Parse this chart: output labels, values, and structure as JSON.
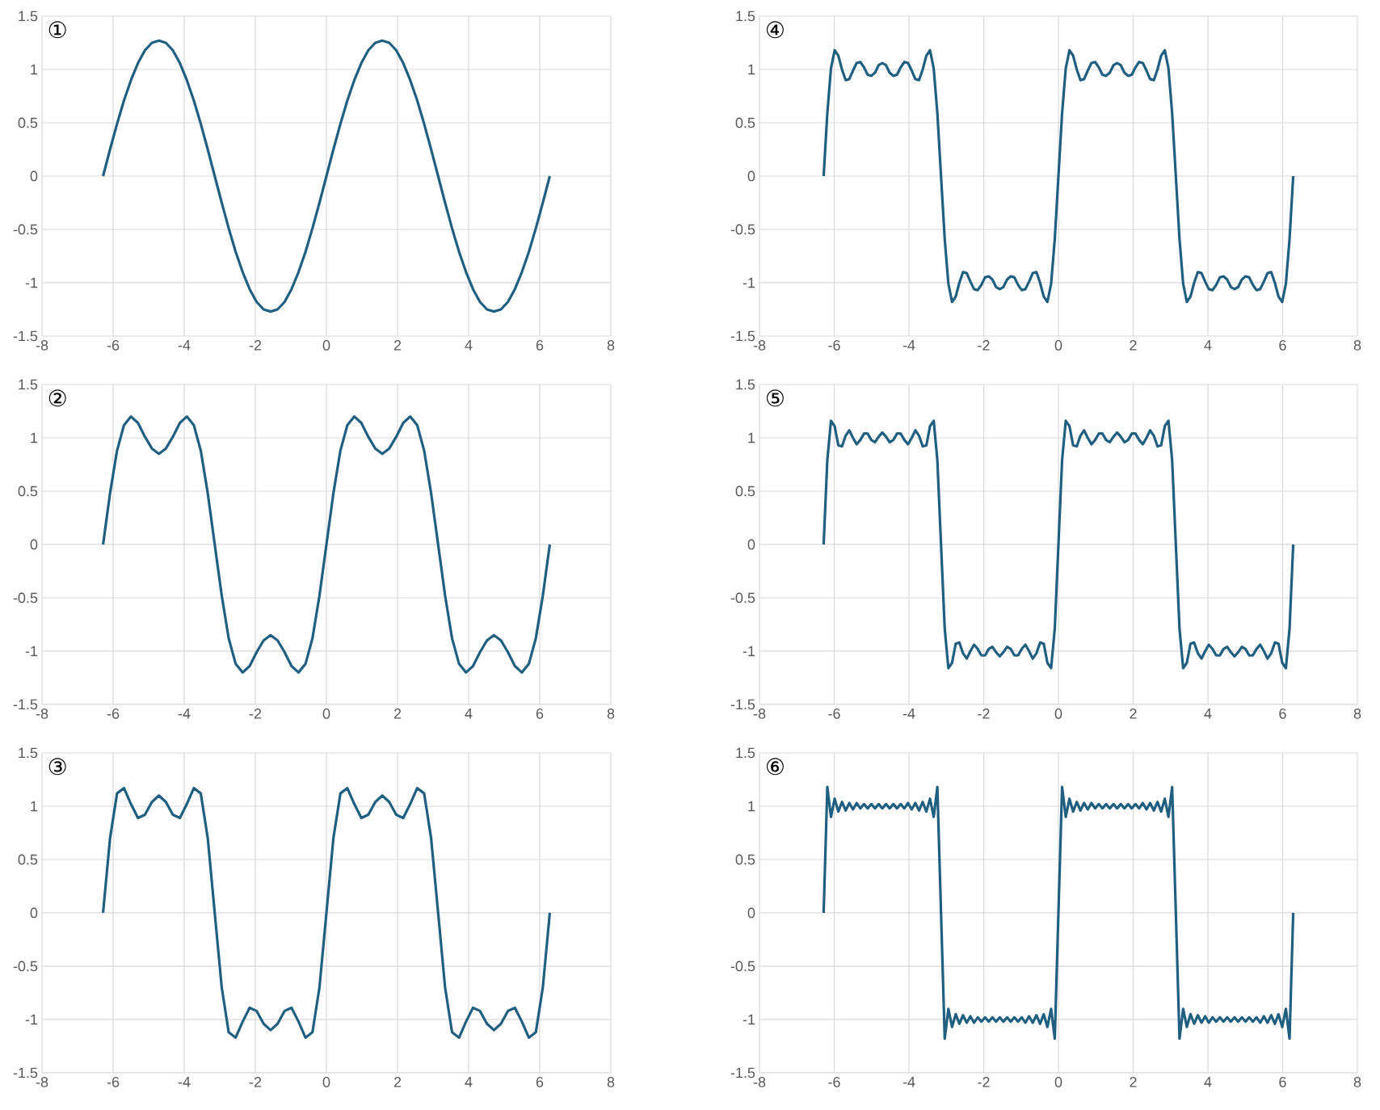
{
  "chart_data": [
    {
      "type": "line",
      "title": "①",
      "color": "#215f80",
      "grid": true,
      "xlim": [
        -8,
        8
      ],
      "ylim": [
        -1.5,
        1.5
      ],
      "xticks": [
        -8,
        -6,
        -4,
        -2,
        0,
        2,
        4,
        6,
        8
      ],
      "yticks": [
        -1.5,
        -1,
        -0.5,
        0,
        0.5,
        1,
        1.5
      ],
      "x": [
        -6.283,
        -6.087,
        -5.89,
        -5.694,
        -5.498,
        -5.301,
        -5.105,
        -4.909,
        -4.712,
        -4.516,
        -4.32,
        -4.123,
        -3.927,
        -3.731,
        -3.534,
        -3.338,
        -3.142,
        -2.945,
        -2.749,
        -2.553,
        -2.356,
        -2.16,
        -1.963,
        -1.767,
        -1.571,
        -1.374,
        -1.178,
        -0.982,
        -0.785,
        -0.589,
        -0.393,
        -0.196,
        0,
        0.196,
        0.393,
        0.589,
        0.785,
        0.982,
        1.178,
        1.374,
        1.571,
        1.767,
        1.963,
        2.16,
        2.356,
        2.553,
        2.749,
        2.945,
        3.142,
        3.338,
        3.534,
        3.731,
        3.927,
        4.123,
        4.32,
        4.516,
        4.712,
        4.909,
        5.105,
        5.301,
        5.498,
        5.694,
        5.89,
        6.087,
        6.283
      ],
      "values": [
        0,
        0.25,
        0.49,
        0.71,
        0.9,
        1.06,
        1.18,
        1.25,
        1.27,
        1.25,
        1.18,
        1.06,
        0.9,
        0.71,
        0.49,
        0.25,
        0,
        -0.25,
        -0.49,
        -0.71,
        -0.9,
        -1.06,
        -1.18,
        -1.25,
        -1.27,
        -1.25,
        -1.18,
        -1.06,
        -0.9,
        -0.71,
        -0.49,
        -0.25,
        0,
        0.25,
        0.49,
        0.71,
        0.9,
        1.06,
        1.18,
        1.25,
        1.27,
        1.25,
        1.18,
        1.06,
        0.9,
        0.71,
        0.49,
        0.25,
        0,
        -0.25,
        -0.49,
        -0.71,
        -0.9,
        -1.06,
        -1.18,
        -1.25,
        -1.27,
        -1.25,
        -1.18,
        -1.06,
        -0.9,
        -0.71,
        -0.49,
        -0.25,
        0
      ]
    },
    {
      "type": "line",
      "title": "②",
      "color": "#215f80",
      "grid": true,
      "xlim": [
        -8,
        8
      ],
      "ylim": [
        -1.5,
        1.5
      ],
      "xticks": [
        -8,
        -6,
        -4,
        -2,
        0,
        2,
        4,
        6,
        8
      ],
      "yticks": [
        -1.5,
        -1,
        -0.5,
        0,
        0.5,
        1,
        1.5
      ],
      "x": [
        -6.283,
        -6.087,
        -5.89,
        -5.694,
        -5.498,
        -5.301,
        -5.105,
        -4.909,
        -4.712,
        -4.516,
        -4.32,
        -4.123,
        -3.927,
        -3.731,
        -3.534,
        -3.338,
        -3.142,
        -2.945,
        -2.749,
        -2.553,
        -2.356,
        -2.16,
        -1.963,
        -1.767,
        -1.571,
        -1.374,
        -1.178,
        -0.982,
        -0.785,
        -0.589,
        -0.393,
        -0.196,
        0,
        0.196,
        0.393,
        0.589,
        0.785,
        0.982,
        1.178,
        1.374,
        1.571,
        1.767,
        1.963,
        2.16,
        2.356,
        2.553,
        2.749,
        2.945,
        3.142,
        3.338,
        3.534,
        3.731,
        3.927,
        4.123,
        4.32,
        4.516,
        4.712,
        4.909,
        5.105,
        5.301,
        5.498,
        5.694,
        5.89,
        6.087,
        6.283
      ],
      "values": [
        0,
        0.48,
        0.88,
        1.12,
        1.2,
        1.14,
        1.01,
        0.9,
        0.85,
        0.9,
        1.01,
        1.14,
        1.2,
        1.12,
        0.88,
        0.48,
        0,
        -0.48,
        -0.88,
        -1.12,
        -1.2,
        -1.14,
        -1.01,
        -0.9,
        -0.85,
        -0.9,
        -1.01,
        -1.14,
        -1.2,
        -1.12,
        -0.88,
        -0.48,
        0,
        0.48,
        0.88,
        1.12,
        1.2,
        1.14,
        1.01,
        0.9,
        0.85,
        0.9,
        1.01,
        1.14,
        1.2,
        1.12,
        0.88,
        0.48,
        0,
        -0.48,
        -0.88,
        -1.12,
        -1.2,
        -1.14,
        -1.01,
        -0.9,
        -0.85,
        -0.9,
        -1.01,
        -1.14,
        -1.2,
        -1.12,
        -0.88,
        -0.48,
        0
      ]
    },
    {
      "type": "line",
      "title": "③",
      "color": "#215f80",
      "grid": true,
      "xlim": [
        -8,
        8
      ],
      "ylim": [
        -1.5,
        1.5
      ],
      "xticks": [
        -8,
        -6,
        -4,
        -2,
        0,
        2,
        4,
        6,
        8
      ],
      "yticks": [
        -1.5,
        -1,
        -0.5,
        0,
        0.5,
        1,
        1.5
      ],
      "x": [
        -6.283,
        -6.087,
        -5.89,
        -5.694,
        -5.498,
        -5.301,
        -5.105,
        -4.909,
        -4.712,
        -4.516,
        -4.32,
        -4.123,
        -3.927,
        -3.731,
        -3.534,
        -3.338,
        -3.142,
        -2.945,
        -2.749,
        -2.553,
        -2.356,
        -2.16,
        -1.963,
        -1.767,
        -1.571,
        -1.374,
        -1.178,
        -0.982,
        -0.785,
        -0.589,
        -0.393,
        -0.196,
        0,
        0.196,
        0.393,
        0.589,
        0.785,
        0.982,
        1.178,
        1.374,
        1.571,
        1.767,
        1.963,
        2.16,
        2.356,
        2.553,
        2.749,
        2.945,
        3.142,
        3.338,
        3.534,
        3.731,
        3.927,
        4.123,
        4.32,
        4.516,
        4.712,
        4.909,
        5.105,
        5.301,
        5.498,
        5.694,
        5.89,
        6.087,
        6.283
      ],
      "values": [
        0,
        0.7,
        1.12,
        1.17,
        1.02,
        0.89,
        0.92,
        1.04,
        1.1,
        1.04,
        0.92,
        0.89,
        1.02,
        1.17,
        1.12,
        0.7,
        0,
        -0.7,
        -1.12,
        -1.17,
        -1.02,
        -0.89,
        -0.92,
        -1.04,
        -1.1,
        -1.04,
        -0.92,
        -0.89,
        -1.02,
        -1.17,
        -1.12,
        -0.7,
        0,
        0.7,
        1.12,
        1.17,
        1.02,
        0.89,
        0.92,
        1.04,
        1.1,
        1.04,
        0.92,
        0.89,
        1.02,
        1.17,
        1.12,
        0.7,
        0,
        -0.7,
        -1.12,
        -1.17,
        -1.02,
        -0.89,
        -0.92,
        -1.04,
        -1.1,
        -1.04,
        -0.92,
        -0.89,
        -1.02,
        -1.17,
        -1.12,
        -0.7,
        0
      ]
    },
    {
      "type": "line",
      "title": "④",
      "color": "#215f80",
      "grid": true,
      "xlim": [
        -8,
        8
      ],
      "ylim": [
        -1.5,
        1.5
      ],
      "xticks": [
        -8,
        -6,
        -4,
        -2,
        0,
        2,
        4,
        6,
        8
      ],
      "yticks": [
        -1.5,
        -1,
        -0.5,
        0,
        0.5,
        1,
        1.5
      ],
      "x": [
        -6.283,
        -6.185,
        -6.087,
        -5.989,
        -5.89,
        -5.792,
        -5.694,
        -5.596,
        -5.498,
        -5.4,
        -5.301,
        -5.203,
        -5.105,
        -5.007,
        -4.909,
        -4.811,
        -4.712,
        -4.614,
        -4.516,
        -4.418,
        -4.32,
        -4.222,
        -4.123,
        -4.025,
        -3.927,
        -3.829,
        -3.731,
        -3.632,
        -3.534,
        -3.436,
        -3.338,
        -3.24,
        -3.142,
        -3.043,
        -2.945,
        -2.847,
        -2.749,
        -2.651,
        -2.553,
        -2.454,
        -2.356,
        -2.258,
        -2.16,
        -2.062,
        -1.963,
        -1.865,
        -1.767,
        -1.669,
        -1.571,
        -1.473,
        -1.374,
        -1.276,
        -1.178,
        -1.08,
        -0.982,
        -0.884,
        -0.785,
        -0.687,
        -0.589,
        -0.491,
        -0.393,
        -0.295,
        -0.196,
        -0.098,
        0,
        0.098,
        0.196,
        0.295,
        0.393,
        0.491,
        0.589,
        0.687,
        0.785,
        0.884,
        0.982,
        1.08,
        1.178,
        1.276,
        1.374,
        1.473,
        1.571,
        1.669,
        1.767,
        1.865,
        1.963,
        2.062,
        2.16,
        2.258,
        2.356,
        2.454,
        2.553,
        2.651,
        2.749,
        2.847,
        2.945,
        3.043,
        3.142,
        3.24,
        3.338,
        3.436,
        3.534,
        3.632,
        3.731,
        3.829,
        3.927,
        4.025,
        4.123,
        4.222,
        4.32,
        4.418,
        4.516,
        4.614,
        4.712,
        4.811,
        4.909,
        5.007,
        5.105,
        5.203,
        5.301,
        5.4,
        5.498,
        5.596,
        5.694,
        5.792,
        5.89,
        5.989,
        6.087,
        6.185,
        6.283
      ],
      "values": [
        0,
        0.59,
        1.01,
        1.18,
        1.13,
        1,
        0.9,
        0.91,
        0.99,
        1.06,
        1.07,
        1.02,
        0.95,
        0.94,
        0.97,
        1.04,
        1.06,
        1.04,
        0.97,
        0.94,
        0.95,
        1.02,
        1.07,
        1.06,
        0.99,
        0.91,
        0.9,
        1,
        1.13,
        1.18,
        1.01,
        0.59,
        0,
        -0.59,
        -1.01,
        -1.18,
        -1.13,
        -1,
        -0.9,
        -0.91,
        -0.99,
        -1.06,
        -1.07,
        -1.02,
        -0.95,
        -0.94,
        -0.97,
        -1.04,
        -1.06,
        -1.04,
        -0.97,
        -0.94,
        -0.95,
        -1.02,
        -1.07,
        -1.06,
        -0.99,
        -0.91,
        -0.9,
        -1,
        -1.13,
        -1.18,
        -1.01,
        -0.59,
        0,
        0.59,
        1.01,
        1.18,
        1.13,
        1,
        0.9,
        0.91,
        0.99,
        1.06,
        1.07,
        1.02,
        0.95,
        0.94,
        0.97,
        1.04,
        1.06,
        1.04,
        0.97,
        0.94,
        0.95,
        1.02,
        1.07,
        1.06,
        0.99,
        0.91,
        0.9,
        1,
        1.13,
        1.18,
        1.01,
        0.59,
        0,
        -0.59,
        -1.01,
        -1.18,
        -1.13,
        -1,
        -0.9,
        -0.91,
        -0.99,
        -1.06,
        -1.07,
        -1.02,
        -0.95,
        -0.94,
        -0.97,
        -1.04,
        -1.06,
        -1.04,
        -0.97,
        -0.94,
        -0.95,
        -1.02,
        -1.07,
        -1.06,
        -0.99,
        -0.91,
        -0.9,
        -1,
        -1.13,
        -1.18,
        -1.01,
        -0.59,
        0
      ]
    },
    {
      "type": "line",
      "title": "⑤",
      "color": "#215f80",
      "grid": true,
      "xlim": [
        -8,
        8
      ],
      "ylim": [
        -1.5,
        1.5
      ],
      "xticks": [
        -8,
        -6,
        -4,
        -2,
        0,
        2,
        4,
        6,
        8
      ],
      "yticks": [
        -1.5,
        -1,
        -0.5,
        0,
        0.5,
        1,
        1.5
      ],
      "x": [
        -6.283,
        -6.185,
        -6.087,
        -5.989,
        -5.89,
        -5.792,
        -5.694,
        -5.596,
        -5.498,
        -5.4,
        -5.301,
        -5.203,
        -5.105,
        -5.007,
        -4.909,
        -4.811,
        -4.712,
        -4.614,
        -4.516,
        -4.418,
        -4.32,
        -4.222,
        -4.123,
        -4.025,
        -3.927,
        -3.829,
        -3.731,
        -3.632,
        -3.534,
        -3.436,
        -3.338,
        -3.24,
        -3.142,
        -3.043,
        -2.945,
        -2.847,
        -2.749,
        -2.651,
        -2.553,
        -2.454,
        -2.356,
        -2.258,
        -2.16,
        -2.062,
        -1.963,
        -1.865,
        -1.767,
        -1.669,
        -1.571,
        -1.473,
        -1.374,
        -1.276,
        -1.178,
        -1.08,
        -0.982,
        -0.884,
        -0.785,
        -0.687,
        -0.589,
        -0.491,
        -0.393,
        -0.295,
        -0.196,
        -0.098,
        0,
        0.098,
        0.196,
        0.295,
        0.393,
        0.491,
        0.589,
        0.687,
        0.785,
        0.884,
        0.982,
        1.08,
        1.178,
        1.276,
        1.374,
        1.473,
        1.571,
        1.669,
        1.767,
        1.865,
        1.963,
        2.062,
        2.16,
        2.258,
        2.356,
        2.454,
        2.553,
        2.651,
        2.749,
        2.847,
        2.945,
        3.043,
        3.142,
        3.24,
        3.338,
        3.436,
        3.534,
        3.632,
        3.731,
        3.829,
        3.927,
        4.025,
        4.123,
        4.222,
        4.32,
        4.418,
        4.516,
        4.614,
        4.712,
        4.811,
        4.909,
        5.007,
        5.105,
        5.203,
        5.301,
        5.4,
        5.498,
        5.596,
        5.694,
        5.792,
        5.89,
        5.989,
        6.087,
        6.185,
        6.283
      ],
      "values": [
        0,
        0.79,
        1.16,
        1.11,
        0.93,
        0.92,
        1.02,
        1.07,
        1,
        0.94,
        0.98,
        1.04,
        1.04,
        0.98,
        0.96,
        1.01,
        1.05,
        1.01,
        0.96,
        0.98,
        1.04,
        1.04,
        0.98,
        0.94,
        1,
        1.07,
        1.02,
        0.92,
        0.93,
        1.11,
        1.16,
        0.79,
        0,
        -0.79,
        -1.16,
        -1.11,
        -0.93,
        -0.92,
        -1.02,
        -1.07,
        -1,
        -0.94,
        -0.98,
        -1.04,
        -1.04,
        -0.98,
        -0.96,
        -1.01,
        -1.05,
        -1.01,
        -0.96,
        -0.98,
        -1.04,
        -1.04,
        -0.98,
        -0.94,
        -1,
        -1.07,
        -1.02,
        -0.92,
        -0.93,
        -1.11,
        -1.16,
        -0.79,
        0,
        0.79,
        1.16,
        1.11,
        0.93,
        0.92,
        1.02,
        1.07,
        1,
        0.94,
        0.98,
        1.04,
        1.04,
        0.98,
        0.96,
        1.01,
        1.05,
        1.01,
        0.96,
        0.98,
        1.04,
        1.04,
        0.98,
        0.94,
        1,
        1.07,
        1.02,
        0.92,
        0.93,
        1.11,
        1.16,
        0.79,
        0,
        -0.79,
        -1.16,
        -1.11,
        -0.93,
        -0.92,
        -1.02,
        -1.07,
        -1,
        -0.94,
        -0.98,
        -1.04,
        -1.04,
        -0.98,
        -0.96,
        -1.01,
        -1.05,
        -1.01,
        -0.96,
        -0.98,
        -1.04,
        -1.04,
        -0.98,
        -0.94,
        -1,
        -1.07,
        -1.02,
        -0.92,
        -0.93,
        -1.11,
        -1.16,
        -0.79,
        0
      ]
    },
    {
      "type": "line",
      "title": "⑥",
      "color": "#215f80",
      "grid": true,
      "xlim": [
        -8,
        8
      ],
      "ylim": [
        -1.5,
        1.5
      ],
      "xticks": [
        -8,
        -6,
        -4,
        -2,
        0,
        2,
        4,
        6,
        8
      ],
      "yticks": [
        -1.5,
        -1,
        -0.5,
        0,
        0.5,
        1,
        1.5
      ],
      "x": [
        -6.283,
        -6.185,
        -6.087,
        -5.989,
        -5.89,
        -5.792,
        -5.694,
        -5.596,
        -5.498,
        -5.4,
        -5.301,
        -5.203,
        -5.105,
        -5.007,
        -4.909,
        -4.811,
        -4.712,
        -4.614,
        -4.516,
        -4.418,
        -4.32,
        -4.222,
        -4.123,
        -4.025,
        -3.927,
        -3.829,
        -3.731,
        -3.632,
        -3.534,
        -3.436,
        -3.338,
        -3.24,
        -3.142,
        -3.043,
        -2.945,
        -2.847,
        -2.749,
        -2.651,
        -2.553,
        -2.454,
        -2.356,
        -2.258,
        -2.16,
        -2.062,
        -1.963,
        -1.865,
        -1.767,
        -1.669,
        -1.571,
        -1.473,
        -1.374,
        -1.276,
        -1.178,
        -1.08,
        -0.982,
        -0.884,
        -0.785,
        -0.687,
        -0.589,
        -0.491,
        -0.393,
        -0.295,
        -0.196,
        -0.098,
        0,
        0.098,
        0.196,
        0.295,
        0.393,
        0.491,
        0.589,
        0.687,
        0.785,
        0.884,
        0.982,
        1.08,
        1.178,
        1.276,
        1.374,
        1.473,
        1.571,
        1.669,
        1.767,
        1.865,
        1.963,
        2.062,
        2.16,
        2.258,
        2.356,
        2.454,
        2.553,
        2.651,
        2.749,
        2.847,
        2.945,
        3.043,
        3.142,
        3.24,
        3.338,
        3.436,
        3.534,
        3.632,
        3.731,
        3.829,
        3.927,
        4.025,
        4.123,
        4.222,
        4.32,
        4.418,
        4.516,
        4.614,
        4.712,
        4.811,
        4.909,
        5.007,
        5.105,
        5.203,
        5.301,
        5.4,
        5.498,
        5.596,
        5.694,
        5.792,
        5.89,
        5.989,
        6.087,
        6.185,
        6.283
      ],
      "values": [
        0,
        1.18,
        0.9,
        1.07,
        0.95,
        1.04,
        0.96,
        1.03,
        0.97,
        1.03,
        0.98,
        1.02,
        0.98,
        1.02,
        0.98,
        1.02,
        0.98,
        1.02,
        0.98,
        1.02,
        0.98,
        1.02,
        0.98,
        1.03,
        0.97,
        1.03,
        0.96,
        1.04,
        0.95,
        1.07,
        0.9,
        1.18,
        0,
        -1.18,
        -0.9,
        -1.07,
        -0.95,
        -1.04,
        -0.96,
        -1.03,
        -0.97,
        -1.03,
        -0.98,
        -1.02,
        -0.98,
        -1.02,
        -0.98,
        -1.02,
        -0.98,
        -1.02,
        -0.98,
        -1.02,
        -0.98,
        -1.02,
        -0.98,
        -1.03,
        -0.97,
        -1.03,
        -0.96,
        -1.04,
        -0.95,
        -1.07,
        -0.9,
        -1.18,
        0,
        1.18,
        0.9,
        1.07,
        0.95,
        1.04,
        0.96,
        1.03,
        0.97,
        1.03,
        0.98,
        1.02,
        0.98,
        1.02,
        0.98,
        1.02,
        0.98,
        1.02,
        0.98,
        1.02,
        0.98,
        1.02,
        0.98,
        1.03,
        0.97,
        1.03,
        0.96,
        1.04,
        0.95,
        1.07,
        0.9,
        1.18,
        0,
        -1.18,
        -0.9,
        -1.07,
        -0.95,
        -1.04,
        -0.96,
        -1.03,
        -0.97,
        -1.03,
        -0.98,
        -1.02,
        -0.98,
        -1.02,
        -0.98,
        -1.02,
        -0.98,
        -1.02,
        -0.98,
        -1.02,
        -0.98,
        -1.02,
        -0.98,
        -1.03,
        -0.97,
        -1.03,
        -0.96,
        -1.04,
        -0.95,
        -1.07,
        -0.9,
        -1.18,
        0
      ]
    }
  ]
}
